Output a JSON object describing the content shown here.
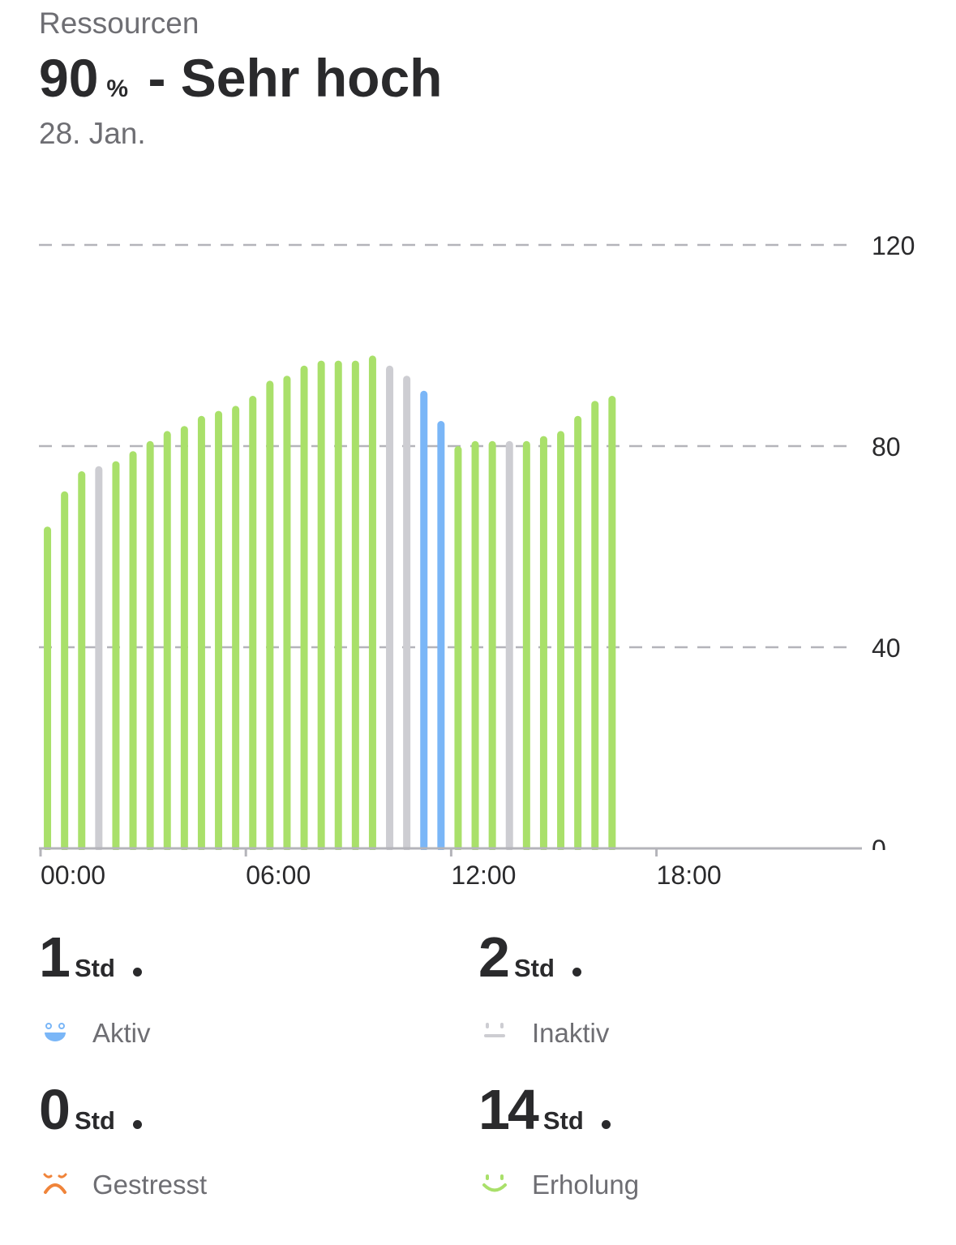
{
  "header": {
    "subtitle": "Ressourcen",
    "value": "90",
    "unit": "%",
    "level": " - Sehr hoch",
    "date": "28. Jan."
  },
  "colors": {
    "recovery": "#a9e06a",
    "inactive": "#cdcdd2",
    "active": "#7ab6f7",
    "stressed": "#f0843a",
    "grid": "#b4b4ba",
    "axis": "#b4b4ba",
    "text": "#2a2a2c",
    "muted": "#6e6e73"
  },
  "chart_data": {
    "type": "bar",
    "x_unit": "time of day",
    "x_ticks": [
      "00:00",
      "06:00",
      "12:00",
      "18:00"
    ],
    "xlim_hours": [
      0,
      24
    ],
    "y_ticks": [
      "0",
      "40",
      "80",
      "120"
    ],
    "ylim": [
      0,
      120
    ],
    "grid": true,
    "interval_minutes": 30,
    "bars": [
      {
        "time": "00:15",
        "value": 64,
        "state": "recovery"
      },
      {
        "time": "00:45",
        "value": 71,
        "state": "recovery"
      },
      {
        "time": "01:15",
        "value": 75,
        "state": "recovery"
      },
      {
        "time": "01:45",
        "value": 76,
        "state": "inactive"
      },
      {
        "time": "02:15",
        "value": 77,
        "state": "recovery"
      },
      {
        "time": "02:45",
        "value": 79,
        "state": "recovery"
      },
      {
        "time": "03:15",
        "value": 81,
        "state": "recovery"
      },
      {
        "time": "03:45",
        "value": 83,
        "state": "recovery"
      },
      {
        "time": "04:15",
        "value": 84,
        "state": "recovery"
      },
      {
        "time": "04:45",
        "value": 86,
        "state": "recovery"
      },
      {
        "time": "05:15",
        "value": 87,
        "state": "recovery"
      },
      {
        "time": "05:45",
        "value": 88,
        "state": "recovery"
      },
      {
        "time": "06:15",
        "value": 90,
        "state": "recovery"
      },
      {
        "time": "06:45",
        "value": 93,
        "state": "recovery"
      },
      {
        "time": "07:15",
        "value": 94,
        "state": "recovery"
      },
      {
        "time": "07:45",
        "value": 96,
        "state": "recovery"
      },
      {
        "time": "08:15",
        "value": 97,
        "state": "recovery"
      },
      {
        "time": "08:45",
        "value": 97,
        "state": "recovery"
      },
      {
        "time": "09:15",
        "value": 97,
        "state": "recovery"
      },
      {
        "time": "09:45",
        "value": 98,
        "state": "recovery"
      },
      {
        "time": "10:15",
        "value": 96,
        "state": "inactive"
      },
      {
        "time": "10:45",
        "value": 94,
        "state": "inactive"
      },
      {
        "time": "11:15",
        "value": 91,
        "state": "active"
      },
      {
        "time": "11:45",
        "value": 85,
        "state": "active"
      },
      {
        "time": "12:15",
        "value": 80,
        "state": "recovery"
      },
      {
        "time": "12:45",
        "value": 81,
        "state": "recovery"
      },
      {
        "time": "13:15",
        "value": 81,
        "state": "recovery"
      },
      {
        "time": "13:45",
        "value": 81,
        "state": "inactive"
      },
      {
        "time": "14:15",
        "value": 81,
        "state": "recovery"
      },
      {
        "time": "14:45",
        "value": 82,
        "state": "recovery"
      },
      {
        "time": "15:15",
        "value": 83,
        "state": "recovery"
      },
      {
        "time": "15:45",
        "value": 86,
        "state": "recovery"
      },
      {
        "time": "16:15",
        "value": 89,
        "state": "recovery"
      },
      {
        "time": "16:45",
        "value": 90,
        "state": "recovery"
      }
    ]
  },
  "stats": [
    {
      "value": "1",
      "unit": "Std",
      "label": "Aktiv",
      "icon": "happy-face-icon",
      "color": "#7ab6f7"
    },
    {
      "value": "2",
      "unit": "Std",
      "label": "Inaktiv",
      "icon": "neutral-face-icon",
      "color": "#cdcdd2"
    },
    {
      "value": "0",
      "unit": "Std",
      "label": "Gestresst",
      "icon": "stressed-face-icon",
      "color": "#f0843a"
    },
    {
      "value": "14",
      "unit": "Std",
      "label": "Erholung",
      "icon": "smile-face-icon",
      "color": "#a9e06a"
    }
  ]
}
